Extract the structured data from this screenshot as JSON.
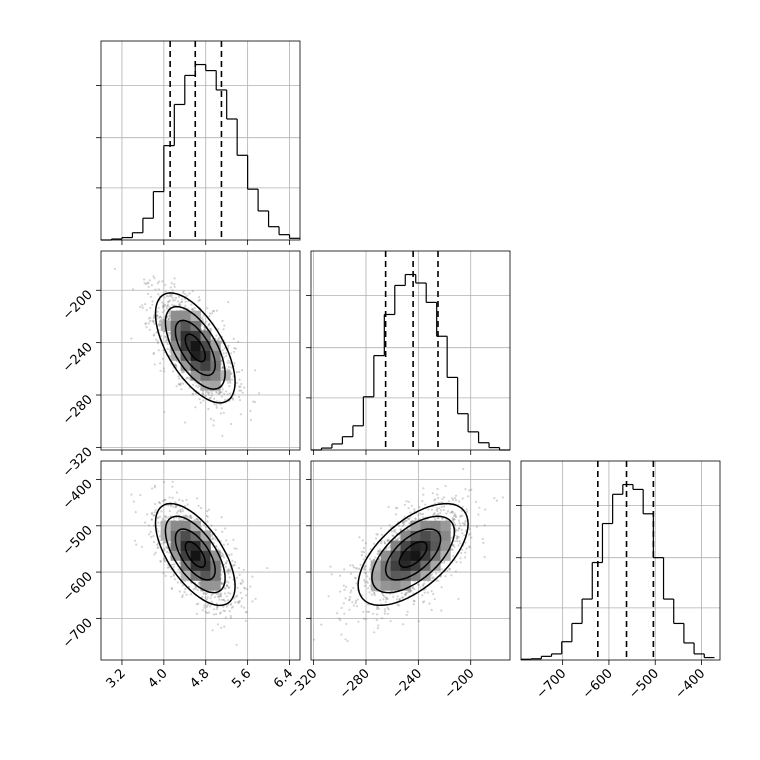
{
  "chart_data": {
    "type": "corner",
    "grid": true,
    "params": [
      {
        "range": [
          2.8,
          6.6
        ],
        "ticks": [
          3.2,
          4.0,
          4.8,
          5.6,
          6.4
        ],
        "tick_labels": [
          "3.2",
          "4.0",
          "4.8",
          "5.6",
          "6.4"
        ],
        "quantiles": [
          4.12,
          4.6,
          5.1
        ],
        "hist": {
          "edges": [
            2.8,
            3.0,
            3.2,
            3.4,
            3.6,
            3.8,
            4.0,
            4.2,
            4.4,
            4.6,
            4.8,
            5.0,
            5.2,
            5.4,
            5.6,
            5.8,
            6.0,
            6.2,
            6.4,
            6.6
          ],
          "counts": [
            0,
            4,
            10,
            30,
            90,
            200,
            390,
            560,
            680,
            725,
            700,
            620,
            500,
            350,
            210,
            120,
            55,
            22,
            7
          ]
        }
      },
      {
        "range": [
          -322,
          -170
        ],
        "ticks": [
          -320,
          -280,
          -240,
          -200
        ],
        "tick_labels": [
          "−320",
          "−280",
          "−240",
          "−200"
        ],
        "quantiles": [
          -265,
          -244,
          -225
        ],
        "hist": {
          "edges": [
            -322,
            -314,
            -306,
            -298,
            -290,
            -282,
            -274,
            -266,
            -258,
            -250,
            -242,
            -234,
            -226,
            -218,
            -210,
            -202,
            -194,
            -186,
            -178,
            -170
          ],
          "counts": [
            0,
            8,
            25,
            55,
            100,
            220,
            390,
            560,
            680,
            725,
            690,
            610,
            470,
            300,
            150,
            75,
            30,
            10,
            0
          ]
        }
      },
      {
        "range": [
          -790,
          -360
        ],
        "ticks": [
          -700,
          -600,
          -500,
          -400
        ],
        "tick_labels": [
          "−700",
          "−600",
          "−500",
          "−400"
        ],
        "quantiles": [
          -624,
          -562,
          -504
        ],
        "hist": {
          "edges": [
            -790,
            -768,
            -746,
            -724,
            -702,
            -680,
            -658,
            -636,
            -614,
            -592,
            -570,
            -548,
            -526,
            -504,
            -482,
            -460,
            -438,
            -416,
            -394,
            -372
          ],
          "counts": [
            3,
            5,
            15,
            25,
            75,
            150,
            250,
            400,
            560,
            680,
            720,
            700,
            600,
            420,
            250,
            150,
            70,
            25,
            10
          ]
        }
      }
    ],
    "pairs": [
      {
        "x": 0,
        "y": 1,
        "mean": [
          4.6,
          -244
        ],
        "sd": [
          0.38,
          21
        ],
        "rho": -0.62
      },
      {
        "x": 0,
        "y": 2,
        "mean": [
          4.6,
          -562
        ],
        "sd": [
          0.38,
          55
        ],
        "rho": -0.62
      },
      {
        "x": 1,
        "y": 2,
        "mean": [
          -244,
          -562
        ],
        "sd": [
          21,
          55
        ],
        "rho": 0.6
      }
    ]
  }
}
